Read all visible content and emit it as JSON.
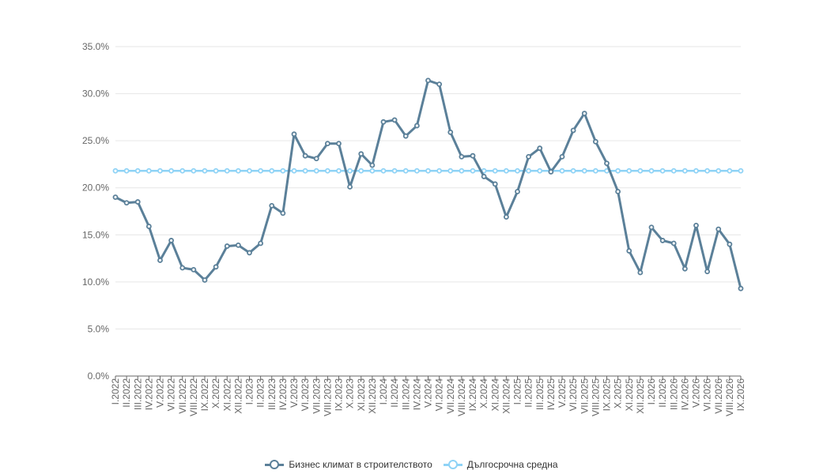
{
  "chart_data": {
    "type": "line",
    "title": "",
    "xlabel": "",
    "ylabel": "",
    "ylim": [
      0,
      35
    ],
    "y_tick_labels": [
      "0.0%",
      "5.0%",
      "10.0%",
      "15.0%",
      "20.0%",
      "25.0%",
      "30.0%",
      "35.0%"
    ],
    "y_ticks": [
      0,
      5,
      10,
      15,
      20,
      25,
      30,
      35
    ],
    "grid": true,
    "legend_position": "bottom-center",
    "categories": [
      "I.2022",
      "II.2022",
      "III.2022",
      "IV.2022",
      "V.2022",
      "VI.2022",
      "VII.2022",
      "VIII.2022",
      "IX.2022",
      "X.2022",
      "XI.2022",
      "XII.2022",
      "I.2023",
      "II.2023",
      "III.2023",
      "IV.2023",
      "V.2023",
      "VI.2023",
      "VII.2023",
      "VIII.2023",
      "IX.2023",
      "X.2023",
      "XI.2023",
      "XII.2023",
      "I.2024",
      "II.2024",
      "III.2024",
      "IV.2024",
      "V.2024",
      "VI.2024",
      "VII.2024",
      "VIII.2024",
      "IX.2024",
      "X.2024",
      "XI.2024",
      "XII.2024",
      "I.2025",
      "II.2025",
      "III.2025",
      "IV.2025",
      "V.2025",
      "VI.2025",
      "VII.2025",
      "VIII.2025",
      "IX.2025",
      "X.2025",
      "XI.2025",
      "XII.2025",
      "I.2026",
      "II.2026",
      "III.2026",
      "IV.2026",
      "V.2026",
      "VI.2026",
      "VII.2026",
      "VIII.2026",
      "IX.2026"
    ],
    "series": [
      {
        "name": "Бизнес климат в строителството",
        "color": "#5b8099",
        "values": [
          19.0,
          18.4,
          18.5,
          15.9,
          12.3,
          14.4,
          11.5,
          11.3,
          10.2,
          11.6,
          13.8,
          13.9,
          13.1,
          14.1,
          18.1,
          17.3,
          25.7,
          23.4,
          23.1,
          24.7,
          24.7,
          20.1,
          23.6,
          22.4,
          27.0,
          27.2,
          25.5,
          26.6,
          31.4,
          31.0,
          25.9,
          23.3,
          23.4,
          21.2,
          20.4,
          16.9,
          19.6,
          23.3,
          24.2,
          21.7,
          23.3,
          26.1,
          27.9,
          24.9,
          22.6,
          19.6,
          13.3,
          11.0,
          15.8,
          14.4,
          14.1,
          11.4,
          16.0,
          11.1,
          15.6,
          14.0,
          9.3
        ]
      },
      {
        "name": "Дългосрочна средна",
        "color": "#8fd3f6",
        "values": [
          21.8,
          21.8,
          21.8,
          21.8,
          21.8,
          21.8,
          21.8,
          21.8,
          21.8,
          21.8,
          21.8,
          21.8,
          21.8,
          21.8,
          21.8,
          21.8,
          21.8,
          21.8,
          21.8,
          21.8,
          21.8,
          21.8,
          21.8,
          21.8,
          21.8,
          21.8,
          21.8,
          21.8,
          21.8,
          21.8,
          21.8,
          21.8,
          21.8,
          21.8,
          21.8,
          21.8,
          21.8,
          21.8,
          21.8,
          21.8,
          21.8,
          21.8,
          21.8,
          21.8,
          21.8,
          21.8,
          21.8,
          21.8,
          21.8,
          21.8,
          21.8,
          21.8,
          21.8,
          21.8,
          21.8,
          21.8,
          21.8
        ]
      }
    ]
  }
}
